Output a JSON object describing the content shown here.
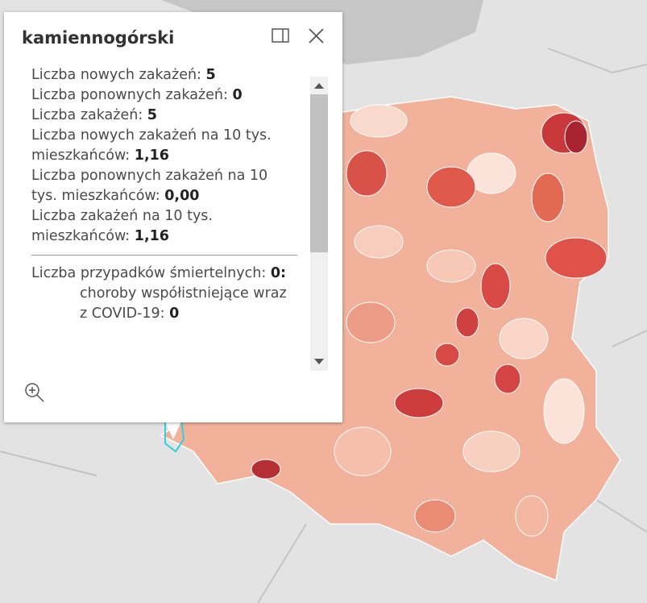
{
  "popup": {
    "title": "kamiennogórski",
    "fields": [
      {
        "label": "Liczba nowych zakażeń:",
        "value": "5"
      },
      {
        "label": "Liczba ponownych zakażeń:",
        "value": "0"
      },
      {
        "label": "Liczba zakażeń:",
        "value": "5"
      },
      {
        "label": "Liczba nowych zakażeń na 10 tys. mieszkańców:",
        "value": "1,16"
      },
      {
        "label": "Liczba ponownych zakażeń na 10 tys. mieszkańców:",
        "value": "0,00"
      },
      {
        "label": "Liczba zakażeń na 10 tys. mieszkańców:",
        "value": "1,16"
      }
    ],
    "deaths": {
      "label": "Liczba przypadków śmiertelnych:",
      "value": "0:"
    },
    "subfields": [
      {
        "label": "choroby współistniejące wraz z COVID-19:",
        "value": "0"
      }
    ]
  }
}
